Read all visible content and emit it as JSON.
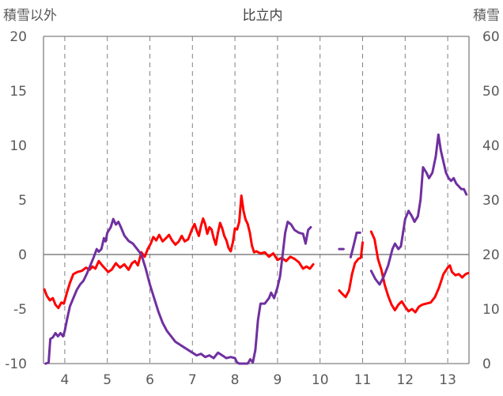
{
  "chart_data": {
    "type": "line",
    "title": "比立内",
    "left_axis_label": "積雪以外",
    "right_axis_label": "積雪",
    "ylim_left": [
      -10,
      20
    ],
    "ylim_right": [
      0,
      60
    ],
    "xlim": [
      3.5,
      13.5
    ],
    "left_ticks": [
      "20",
      "15",
      "10",
      "5",
      "0",
      "-5",
      "-10"
    ],
    "right_ticks": [
      "60",
      "50",
      "40",
      "30",
      "20",
      "10",
      "0"
    ],
    "x_ticks": [
      "4",
      "5",
      "6",
      "7",
      "8",
      "9",
      "10",
      "11",
      "12",
      "13"
    ],
    "grid": "vertical dashed at each month",
    "colors": {
      "red": "#ff0000",
      "purple": "#7030a0",
      "grid": "#808080",
      "zero": "#808080"
    },
    "series": [
      {
        "axis": "left",
        "color": "#ff0000",
        "segments": [
          [
            [
              3.52,
              -3.2
            ],
            [
              3.58,
              -3.8
            ],
            [
              3.65,
              -4.2
            ],
            [
              3.72,
              -4.0
            ],
            [
              3.78,
              -4.6
            ],
            [
              3.85,
              -4.9
            ],
            [
              3.92,
              -4.4
            ],
            [
              3.98,
              -4.5
            ],
            [
              4.05,
              -3.5
            ],
            [
              4.12,
              -2.6
            ],
            [
              4.2,
              -1.8
            ],
            [
              4.3,
              -1.6
            ],
            [
              4.4,
              -1.5
            ],
            [
              4.5,
              -1.2
            ],
            [
              4.58,
              -1.4
            ],
            [
              4.65,
              -1.1
            ],
            [
              4.72,
              -1.3
            ],
            [
              4.8,
              -0.6
            ],
            [
              4.88,
              -1.0
            ],
            [
              4.95,
              -1.3
            ],
            [
              5.02,
              -1.6
            ],
            [
              5.1,
              -1.4
            ],
            [
              5.2,
              -0.8
            ],
            [
              5.3,
              -1.2
            ],
            [
              5.4,
              -0.9
            ],
            [
              5.5,
              -1.4
            ],
            [
              5.58,
              -0.8
            ],
            [
              5.65,
              -0.6
            ],
            [
              5.72,
              -1.0
            ],
            [
              5.8,
              0.2
            ],
            [
              5.88,
              -0.2
            ],
            [
              5.95,
              0.5
            ],
            [
              6.02,
              1.0
            ],
            [
              6.08,
              1.6
            ],
            [
              6.15,
              1.3
            ],
            [
              6.22,
              1.8
            ],
            [
              6.3,
              1.2
            ],
            [
              6.38,
              1.5
            ],
            [
              6.45,
              1.8
            ],
            [
              6.52,
              1.3
            ],
            [
              6.6,
              0.9
            ],
            [
              6.68,
              1.2
            ],
            [
              6.75,
              1.7
            ],
            [
              6.82,
              1.2
            ],
            [
              6.9,
              1.4
            ],
            [
              6.95,
              1.9
            ],
            [
              7.0,
              2.4
            ],
            [
              7.05,
              2.8
            ],
            [
              7.1,
              2.2
            ],
            [
              7.15,
              1.7
            ],
            [
              7.2,
              2.6
            ],
            [
              7.25,
              3.3
            ],
            [
              7.3,
              2.8
            ],
            [
              7.35,
              1.9
            ],
            [
              7.4,
              2.5
            ],
            [
              7.45,
              2.3
            ],
            [
              7.5,
              1.5
            ],
            [
              7.55,
              0.9
            ],
            [
              7.6,
              2.0
            ],
            [
              7.65,
              2.9
            ],
            [
              7.7,
              2.4
            ],
            [
              7.75,
              1.7
            ],
            [
              7.8,
              1.3
            ],
            [
              7.85,
              0.6
            ],
            [
              7.9,
              0.3
            ],
            [
              7.95,
              1.1
            ],
            [
              8.0,
              2.4
            ],
            [
              8.05,
              2.3
            ],
            [
              8.1,
              3.0
            ],
            [
              8.15,
              5.4
            ],
            [
              8.2,
              4.0
            ],
            [
              8.25,
              3.2
            ],
            [
              8.3,
              2.8
            ],
            [
              8.35,
              2.0
            ],
            [
              8.4,
              0.8
            ],
            [
              8.45,
              0.2
            ],
            [
              8.5,
              0.3
            ],
            [
              8.6,
              0.1
            ],
            [
              8.7,
              0.2
            ],
            [
              8.8,
              -0.2
            ],
            [
              8.9,
              0.1
            ],
            [
              9.0,
              -0.5
            ],
            [
              9.1,
              -0.3
            ],
            [
              9.2,
              -0.6
            ],
            [
              9.3,
              -0.2
            ],
            [
              9.4,
              -0.4
            ],
            [
              9.5,
              -0.7
            ],
            [
              9.6,
              -1.3
            ],
            [
              9.68,
              -1.1
            ],
            [
              9.76,
              -1.3
            ],
            [
              9.84,
              -0.9
            ]
          ],
          [
            [
              10.45,
              -3.3
            ],
            [
              10.52,
              -3.6
            ],
            [
              10.6,
              -3.9
            ],
            [
              10.68,
              -3.3
            ],
            [
              10.75,
              -1.8
            ],
            [
              10.82,
              -0.8
            ],
            [
              10.9,
              -0.4
            ],
            [
              10.96,
              -0.3
            ],
            [
              11.0,
              1.1
            ]
          ],
          [
            [
              11.2,
              2.1
            ],
            [
              11.28,
              1.4
            ],
            [
              11.36,
              -0.4
            ],
            [
              11.44,
              -1.4
            ],
            [
              11.52,
              -2.8
            ],
            [
              11.6,
              -3.8
            ],
            [
              11.68,
              -4.6
            ],
            [
              11.76,
              -5.1
            ],
            [
              11.84,
              -4.6
            ],
            [
              11.92,
              -4.3
            ],
            [
              12.0,
              -4.8
            ],
            [
              12.08,
              -5.2
            ],
            [
              12.16,
              -5.0
            ],
            [
              12.24,
              -5.3
            ],
            [
              12.32,
              -4.8
            ],
            [
              12.4,
              -4.6
            ],
            [
              12.5,
              -4.5
            ],
            [
              12.6,
              -4.4
            ],
            [
              12.7,
              -3.9
            ],
            [
              12.8,
              -3.0
            ],
            [
              12.9,
              -1.8
            ],
            [
              13.0,
              -1.2
            ],
            [
              13.05,
              -1.0
            ],
            [
              13.1,
              -1.6
            ],
            [
              13.18,
              -1.9
            ],
            [
              13.26,
              -1.8
            ],
            [
              13.34,
              -2.1
            ],
            [
              13.42,
              -1.8
            ],
            [
              13.48,
              -1.7
            ]
          ]
        ]
      },
      {
        "axis": "right",
        "color": "#7030a0",
        "segments": [
          [
            [
              3.55,
              0
            ],
            [
              3.62,
              0.2
            ],
            [
              3.66,
              4.5
            ],
            [
              3.72,
              4.8
            ],
            [
              3.78,
              5.6
            ],
            [
              3.84,
              5.0
            ],
            [
              3.9,
              5.6
            ],
            [
              3.96,
              5.0
            ],
            [
              4.0,
              6.0
            ],
            [
              4.05,
              8.0
            ],
            [
              4.12,
              10.5
            ],
            [
              4.2,
              12.0
            ],
            [
              4.28,
              13.5
            ],
            [
              4.36,
              14.5
            ],
            [
              4.44,
              15.2
            ],
            [
              4.52,
              16.5
            ],
            [
              4.6,
              18.0
            ],
            [
              4.68,
              19.5
            ],
            [
              4.75,
              21.0
            ],
            [
              4.8,
              20.5
            ],
            [
              4.86,
              21.0
            ],
            [
              4.92,
              23.0
            ],
            [
              4.96,
              22.4
            ],
            [
              5.0,
              24.0
            ],
            [
              5.08,
              25.0
            ],
            [
              5.14,
              26.5
            ],
            [
              5.2,
              25.5
            ],
            [
              5.26,
              26.0
            ],
            [
              5.32,
              25.0
            ],
            [
              5.4,
              23.5
            ],
            [
              5.5,
              22.5
            ],
            [
              5.6,
              22.0
            ],
            [
              5.7,
              21.0
            ],
            [
              5.8,
              20.0
            ],
            [
              5.9,
              17.5
            ],
            [
              6.0,
              14.5
            ],
            [
              6.1,
              12.0
            ],
            [
              6.2,
              9.5
            ],
            [
              6.3,
              7.5
            ],
            [
              6.4,
              6.0
            ],
            [
              6.5,
              5.0
            ],
            [
              6.6,
              4.0
            ],
            [
              6.7,
              3.5
            ],
            [
              6.8,
              3.0
            ],
            [
              6.9,
              2.5
            ],
            [
              7.0,
              2.0
            ],
            [
              7.1,
              1.5
            ],
            [
              7.2,
              1.8
            ],
            [
              7.3,
              1.2
            ],
            [
              7.4,
              1.5
            ],
            [
              7.5,
              1.0
            ],
            [
              7.6,
              2.0
            ],
            [
              7.7,
              1.5
            ],
            [
              7.8,
              1.0
            ],
            [
              7.9,
              1.2
            ],
            [
              8.0,
              1.0
            ],
            [
              8.05,
              0.2
            ],
            [
              8.1,
              0
            ],
            [
              8.2,
              0
            ],
            [
              8.3,
              0
            ],
            [
              8.36,
              0.8
            ],
            [
              8.42,
              0.2
            ],
            [
              8.48,
              2.5
            ],
            [
              8.54,
              8.0
            ],
            [
              8.6,
              11.0
            ],
            [
              8.7,
              11.0
            ],
            [
              8.8,
              12.0
            ],
            [
              8.85,
              13.0
            ],
            [
              8.92,
              12.0
            ],
            [
              9.0,
              14.0
            ],
            [
              9.06,
              16.0
            ],
            [
              9.12,
              20.0
            ],
            [
              9.18,
              24.0
            ],
            [
              9.24,
              26.0
            ],
            [
              9.32,
              25.5
            ],
            [
              9.4,
              24.5
            ],
            [
              9.5,
              24.0
            ],
            [
              9.6,
              23.8
            ],
            [
              9.66,
              22.0
            ],
            [
              9.72,
              24.5
            ],
            [
              9.78,
              25.0
            ]
          ],
          [
            [
              10.45,
              21.0
            ],
            [
              10.55,
              21.0
            ]
          ],
          [
            [
              10.72,
              19.5
            ],
            [
              10.8,
              22.0
            ],
            [
              10.86,
              24.0
            ],
            [
              10.94,
              24.0
            ]
          ],
          [
            [
              11.2,
              17.0
            ],
            [
              11.3,
              15.5
            ],
            [
              11.4,
              14.5
            ],
            [
              11.5,
              16.0
            ],
            [
              11.6,
              18.0
            ],
            [
              11.7,
              21.0
            ],
            [
              11.76,
              22.0
            ],
            [
              11.84,
              21.0
            ],
            [
              11.9,
              21.5
            ],
            [
              12.0,
              26.5
            ],
            [
              12.08,
              28.0
            ],
            [
              12.16,
              27.0
            ],
            [
              12.22,
              26.0
            ],
            [
              12.3,
              27.0
            ],
            [
              12.36,
              30.0
            ],
            [
              12.42,
              36.0
            ],
            [
              12.5,
              35.0
            ],
            [
              12.56,
              34.0
            ],
            [
              12.64,
              35.0
            ],
            [
              12.72,
              38.0
            ],
            [
              12.78,
              42.0
            ],
            [
              12.84,
              39.0
            ],
            [
              12.9,
              37.0
            ],
            [
              12.96,
              35.0
            ],
            [
              13.02,
              34.0
            ],
            [
              13.08,
              33.5
            ],
            [
              13.14,
              34.0
            ],
            [
              13.2,
              33.0
            ],
            [
              13.26,
              32.5
            ],
            [
              13.32,
              32.0
            ],
            [
              13.38,
              32.0
            ],
            [
              13.44,
              31.0
            ]
          ]
        ]
      }
    ]
  }
}
